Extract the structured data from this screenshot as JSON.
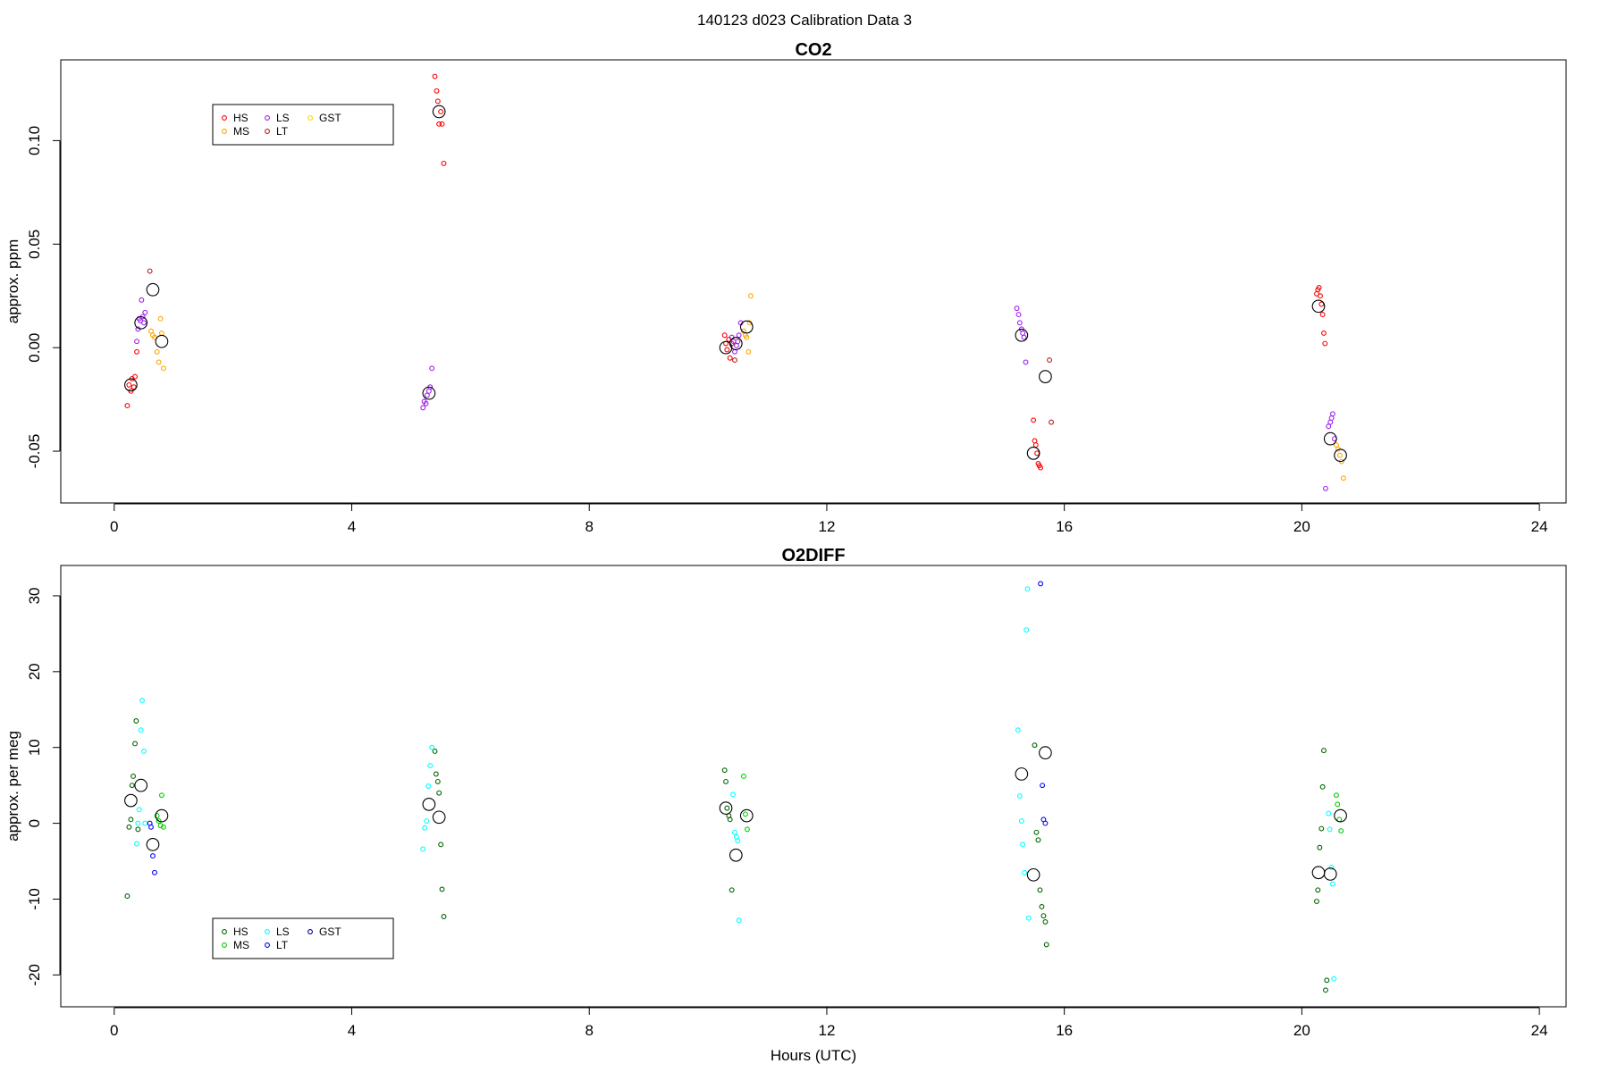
{
  "page_title": "140123   d023   Calibration Data 3",
  "chart_data": [
    {
      "type": "scatter",
      "title": "CO2",
      "xlabel": "",
      "ylabel": "approx. ppm",
      "xlim": [
        -0.9,
        24.45
      ],
      "ylim": [
        -0.075,
        0.139
      ],
      "xticks": [
        0,
        4,
        8,
        12,
        16,
        20,
        24
      ],
      "yticks": [
        -0.05,
        0.0,
        0.05,
        0.1
      ],
      "ytick_labels": [
        "-0.05",
        "0.00",
        "0.05",
        "0.10"
      ],
      "legend": {
        "position": "top-left",
        "entries": [
          {
            "label": "HS",
            "color": "#ff0000"
          },
          {
            "label": "MS",
            "color": "#ffa500"
          },
          {
            "label": "LS",
            "color": "#a020f0"
          },
          {
            "label": "LT",
            "color": "#b22222"
          },
          {
            "label": "GST",
            "color": "#ffd700"
          }
        ]
      },
      "series": [
        {
          "name": "HS",
          "color": "#ff0000",
          "points": [
            [
              0.22,
              -0.028
            ],
            [
              0.25,
              -0.018
            ],
            [
              0.28,
              -0.021
            ],
            [
              0.3,
              -0.015
            ],
            [
              0.33,
              -0.019
            ],
            [
              0.35,
              -0.014
            ],
            [
              0.38,
              -0.002
            ],
            [
              5.4,
              0.131
            ],
            [
              5.43,
              0.124
            ],
            [
              5.45,
              0.119
            ],
            [
              5.47,
              0.108
            ],
            [
              5.5,
              0.114
            ],
            [
              5.52,
              0.108
            ],
            [
              5.55,
              0.089
            ],
            [
              10.28,
              0.006
            ],
            [
              10.3,
              0.002
            ],
            [
              10.32,
              -0.001
            ],
            [
              10.35,
              0.004
            ],
            [
              10.37,
              -0.005
            ],
            [
              10.4,
              0.002
            ],
            [
              15.48,
              -0.035
            ],
            [
              15.5,
              -0.045
            ],
            [
              15.52,
              -0.047
            ],
            [
              15.54,
              -0.051
            ],
            [
              15.56,
              -0.056
            ],
            [
              15.58,
              -0.057
            ],
            [
              15.6,
              -0.058
            ],
            [
              20.25,
              0.026
            ],
            [
              20.27,
              0.028
            ],
            [
              20.29,
              0.029
            ],
            [
              20.31,
              0.025
            ],
            [
              20.33,
              0.021
            ],
            [
              20.35,
              0.016
            ],
            [
              20.37,
              0.007
            ],
            [
              20.39,
              0.002
            ]
          ]
        },
        {
          "name": "MS",
          "color": "#ffa500",
          "points": [
            [
              0.62,
              0.008
            ],
            [
              0.65,
              0.006
            ],
            [
              0.68,
              0.005
            ],
            [
              0.72,
              -0.002
            ],
            [
              0.75,
              -0.007
            ],
            [
              0.78,
              0.014
            ],
            [
              0.8,
              0.007
            ],
            [
              0.83,
              -0.01
            ],
            [
              10.6,
              0.008
            ],
            [
              10.63,
              0.006
            ],
            [
              10.65,
              0.005
            ],
            [
              10.68,
              -0.002
            ],
            [
              10.7,
              0.012
            ],
            [
              10.72,
              0.025
            ],
            [
              20.58,
              -0.047
            ],
            [
              20.61,
              -0.049
            ],
            [
              20.64,
              -0.052
            ],
            [
              20.67,
              -0.055
            ],
            [
              20.7,
              -0.063
            ]
          ]
        },
        {
          "name": "LS",
          "color": "#a020f0",
          "points": [
            [
              0.38,
              0.003
            ],
            [
              0.4,
              0.009
            ],
            [
              0.42,
              0.014
            ],
            [
              0.44,
              0.013
            ],
            [
              0.46,
              0.023
            ],
            [
              0.48,
              0.015
            ],
            [
              0.5,
              0.012
            ],
            [
              0.52,
              0.017
            ],
            [
              5.2,
              -0.029
            ],
            [
              5.22,
              -0.026
            ],
            [
              5.25,
              -0.027
            ],
            [
              5.27,
              -0.023
            ],
            [
              5.3,
              -0.021
            ],
            [
              5.32,
              -0.019
            ],
            [
              5.35,
              -0.01
            ],
            [
              10.4,
              0.005
            ],
            [
              10.43,
              0.003
            ],
            [
              10.45,
              -0.002
            ],
            [
              10.48,
              0.001
            ],
            [
              10.5,
              0.003
            ],
            [
              10.52,
              0.006
            ],
            [
              10.55,
              0.012
            ],
            [
              15.2,
              0.019
            ],
            [
              15.23,
              0.016
            ],
            [
              15.25,
              0.012
            ],
            [
              15.28,
              0.009
            ],
            [
              15.3,
              0.007
            ],
            [
              15.32,
              0.005
            ],
            [
              15.35,
              -0.007
            ],
            [
              20.4,
              -0.068
            ],
            [
              20.45,
              -0.038
            ],
            [
              20.48,
              -0.036
            ],
            [
              20.5,
              -0.034
            ],
            [
              20.52,
              -0.032
            ],
            [
              20.55,
              -0.044
            ]
          ]
        },
        {
          "name": "LT",
          "color": "#b22222",
          "points": [
            [
              0.6,
              0.037
            ],
            [
              10.45,
              -0.006
            ],
            [
              15.75,
              -0.006
            ],
            [
              15.78,
              -0.036
            ]
          ]
        },
        {
          "name": "GST",
          "color": "#ffd700",
          "points": []
        }
      ],
      "means": [
        [
          0.28,
          -0.018
        ],
        [
          0.45,
          0.012
        ],
        [
          0.65,
          0.028
        ],
        [
          0.8,
          0.003
        ],
        [
          5.3,
          -0.022
        ],
        [
          5.47,
          0.114
        ],
        [
          10.3,
          0.0
        ],
        [
          10.47,
          0.002
        ],
        [
          10.65,
          0.01
        ],
        [
          15.28,
          0.006
        ],
        [
          15.48,
          -0.051
        ],
        [
          15.68,
          -0.014
        ],
        [
          20.28,
          0.02
        ],
        [
          20.48,
          -0.044
        ],
        [
          20.65,
          -0.052
        ]
      ]
    },
    {
      "type": "scatter",
      "title": "O2DIFF",
      "xlabel": "Hours (UTC)",
      "ylabel": "approx. per meg",
      "xlim": [
        -0.9,
        24.45
      ],
      "ylim": [
        -24.2,
        34
      ],
      "xticks": [
        0,
        4,
        8,
        12,
        16,
        20,
        24
      ],
      "yticks": [
        -20,
        -10,
        0,
        10,
        20,
        30
      ],
      "ytick_labels": [
        "-20",
        "-10",
        "0",
        "10",
        "20",
        "30"
      ],
      "legend": {
        "position": "bottom-left",
        "entries": [
          {
            "label": "HS",
            "color": "#006400"
          },
          {
            "label": "MS",
            "color": "#00cd00"
          },
          {
            "label": "LS",
            "color": "#00ffff"
          },
          {
            "label": "LT",
            "color": "#0000ff"
          },
          {
            "label": "GST",
            "color": "#00008b"
          }
        ]
      },
      "series": [
        {
          "name": "HS",
          "color": "#006400",
          "points": [
            [
              0.22,
              -9.6
            ],
            [
              0.25,
              -0.5
            ],
            [
              0.28,
              0.5
            ],
            [
              0.3,
              5.0
            ],
            [
              0.32,
              6.2
            ],
            [
              0.35,
              10.5
            ],
            [
              0.37,
              13.5
            ],
            [
              0.4,
              -0.8
            ],
            [
              5.4,
              9.5
            ],
            [
              5.42,
              6.5
            ],
            [
              5.45,
              5.5
            ],
            [
              5.47,
              4.0
            ],
            [
              5.5,
              -2.8
            ],
            [
              5.52,
              -8.7
            ],
            [
              5.55,
              -12.3
            ],
            [
              10.28,
              7.0
            ],
            [
              10.3,
              5.5
            ],
            [
              10.32,
              2.0
            ],
            [
              10.35,
              1.0
            ],
            [
              10.37,
              0.5
            ],
            [
              10.4,
              -8.8
            ],
            [
              15.5,
              10.3
            ],
            [
              15.53,
              -1.2
            ],
            [
              15.56,
              -2.2
            ],
            [
              15.59,
              -8.8
            ],
            [
              15.62,
              -11.0
            ],
            [
              15.65,
              -12.2
            ],
            [
              15.68,
              -13.0
            ],
            [
              15.7,
              -16.0
            ],
            [
              20.25,
              -10.3
            ],
            [
              20.27,
              -8.8
            ],
            [
              20.3,
              -3.2
            ],
            [
              20.33,
              -0.7
            ],
            [
              20.35,
              4.8
            ],
            [
              20.37,
              9.6
            ],
            [
              20.4,
              -22.0
            ],
            [
              20.42,
              -20.7
            ]
          ]
        },
        {
          "name": "MS",
          "color": "#00cd00",
          "points": [
            [
              0.72,
              1.0
            ],
            [
              0.75,
              0.3
            ],
            [
              0.78,
              -0.3
            ],
            [
              0.8,
              3.7
            ],
            [
              0.83,
              -0.5
            ],
            [
              10.6,
              6.2
            ],
            [
              10.63,
              1.2
            ],
            [
              10.66,
              -0.8
            ],
            [
              20.58,
              3.7
            ],
            [
              20.6,
              2.5
            ],
            [
              20.63,
              0.5
            ],
            [
              20.66,
              -1.0
            ]
          ]
        },
        {
          "name": "LS",
          "color": "#00ffff",
          "points": [
            [
              0.38,
              -2.7
            ],
            [
              0.4,
              0.0
            ],
            [
              0.42,
              1.8
            ],
            [
              0.45,
              12.3
            ],
            [
              0.47,
              16.2
            ],
            [
              0.5,
              9.5
            ],
            [
              0.52,
              0.0
            ],
            [
              5.2,
              -3.4
            ],
            [
              5.23,
              -0.6
            ],
            [
              5.26,
              0.3
            ],
            [
              5.29,
              4.9
            ],
            [
              5.32,
              7.6
            ],
            [
              5.35,
              10.0
            ],
            [
              10.42,
              3.8
            ],
            [
              10.45,
              -1.2
            ],
            [
              10.48,
              -1.8
            ],
            [
              10.5,
              -2.3
            ],
            [
              10.52,
              -12.8
            ],
            [
              15.22,
              12.3
            ],
            [
              15.25,
              3.6
            ],
            [
              15.28,
              0.3
            ],
            [
              15.3,
              -2.8
            ],
            [
              15.33,
              -6.5
            ],
            [
              15.36,
              25.5
            ],
            [
              15.38,
              30.9
            ],
            [
              15.4,
              -12.5
            ],
            [
              20.45,
              1.3
            ],
            [
              20.47,
              -0.8
            ],
            [
              20.5,
              -5.8
            ],
            [
              20.52,
              -8.0
            ],
            [
              20.54,
              -20.5
            ]
          ]
        },
        {
          "name": "LT",
          "color": "#0000ff",
          "points": [
            [
              0.6,
              0.0
            ],
            [
              0.62,
              -0.5
            ],
            [
              0.65,
              -4.3
            ],
            [
              0.68,
              -6.5
            ],
            [
              15.6,
              31.6
            ],
            [
              15.63,
              5.0
            ],
            [
              15.65,
              0.5
            ],
            [
              15.68,
              0.0
            ]
          ]
        },
        {
          "name": "GST",
          "color": "#00008b",
          "points": []
        }
      ],
      "means": [
        [
          0.28,
          3.0
        ],
        [
          0.45,
          5.0
        ],
        [
          0.65,
          -2.8
        ],
        [
          0.8,
          1.0
        ],
        [
          5.3,
          2.5
        ],
        [
          5.47,
          0.8
        ],
        [
          10.3,
          2.0
        ],
        [
          10.47,
          -4.2
        ],
        [
          10.65,
          1.0
        ],
        [
          15.28,
          6.5
        ],
        [
          15.48,
          -6.8
        ],
        [
          15.68,
          9.3
        ],
        [
          20.28,
          -6.5
        ],
        [
          20.48,
          -6.7
        ],
        [
          20.65,
          1.0
        ]
      ]
    }
  ]
}
